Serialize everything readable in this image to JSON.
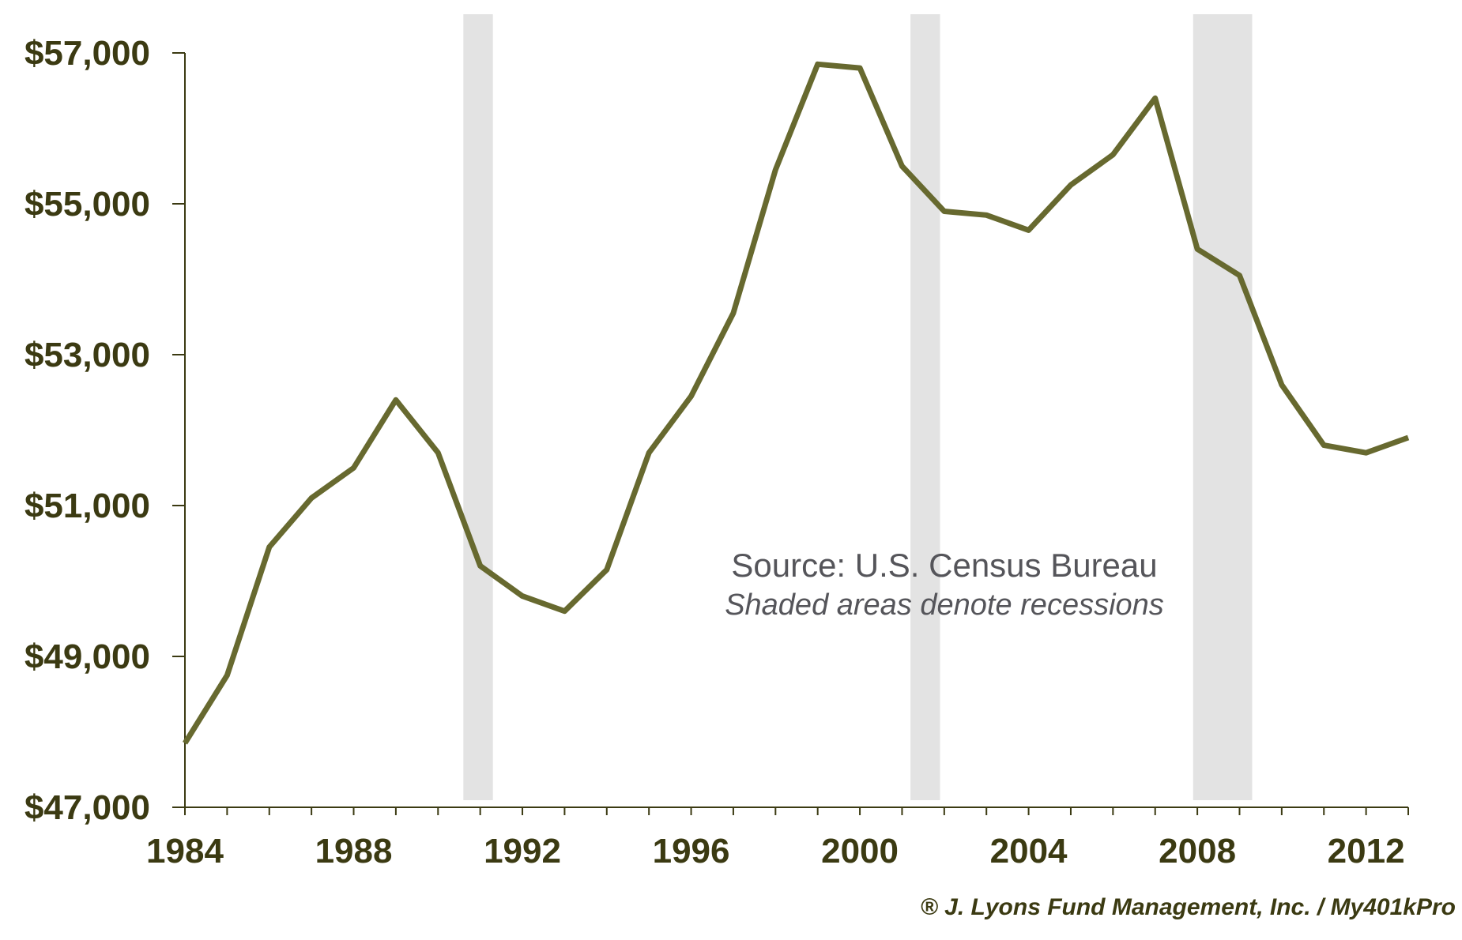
{
  "chart_data": {
    "type": "line",
    "title": "",
    "xlabel": "",
    "ylabel": "",
    "xlim": [
      1984,
      2013
    ],
    "ylim": [
      47000,
      57000
    ],
    "y_ticks": [
      47000,
      49000,
      51000,
      53000,
      55000,
      57000
    ],
    "y_tick_labels": [
      "$47,000",
      "$49,000",
      "$51,000",
      "$53,000",
      "$55,000",
      "$57,000"
    ],
    "x_ticks": [
      1984,
      1988,
      1992,
      1996,
      2000,
      2004,
      2008,
      2012
    ],
    "x_tick_labels": [
      "1984",
      "1988",
      "1992",
      "1996",
      "2000",
      "2004",
      "2008",
      "2012"
    ],
    "grid": false,
    "recessions": [
      {
        "start": 1990.6,
        "end": 1991.3
      },
      {
        "start": 2001.2,
        "end": 2001.9
      },
      {
        "start": 2007.9,
        "end": 2009.3
      }
    ],
    "series": [
      {
        "color": "#67692f",
        "x": [
          1984,
          1985,
          1986,
          1987,
          1988,
          1989,
          1990,
          1991,
          1992,
          1993,
          1994,
          1995,
          1996,
          1997,
          1998,
          1999,
          2000,
          2001,
          2002,
          2003,
          2004,
          2005,
          2006,
          2007,
          2008,
          2009,
          2010,
          2011,
          2012,
          2013
        ],
        "values": [
          47850,
          48750,
          50450,
          51100,
          51500,
          52400,
          51700,
          50200,
          49800,
          49600,
          50150,
          51700,
          52450,
          53550,
          55450,
          56850,
          56800,
          55500,
          54900,
          54850,
          54650,
          55250,
          55650,
          56400,
          54400,
          54050,
          52600,
          51800,
          51700,
          51900
        ]
      }
    ],
    "annotations": {
      "source": "Source: U.S. Census Bureau",
      "note": "Shaded areas denote recessions",
      "credit": "® J. Lyons Fund Management, Inc. / My401kPro"
    }
  },
  "colors": {
    "line": "#67692f",
    "axis": "#3b3a12",
    "recession": "#e3e3e3"
  }
}
